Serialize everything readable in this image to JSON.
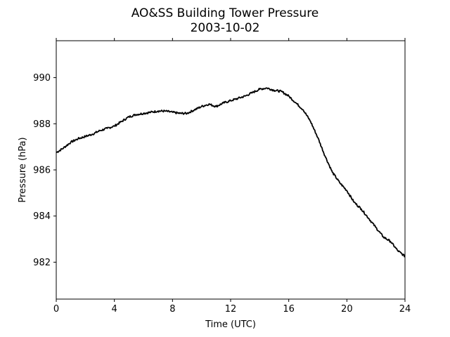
{
  "chart_data": {
    "type": "line",
    "title": "AO&SS Building Tower Pressure",
    "subtitle": "2003-10-02",
    "xlabel": "Time (UTC)",
    "ylabel": "Pressure (hPa)",
    "xlim": [
      0,
      24
    ],
    "ylim": [
      980.4,
      991.6
    ],
    "xticks": [
      "0",
      "4",
      "8",
      "12",
      "16",
      "20",
      "24"
    ],
    "yticks": [
      "982",
      "984",
      "986",
      "988",
      "990"
    ],
    "grid": false,
    "line_color": "#000000",
    "series": [
      {
        "x": [
          0,
          0.5,
          1,
          1.5,
          2,
          2.5,
          3,
          3.5,
          4,
          4.5,
          5,
          5.5,
          6,
          6.5,
          7,
          7.5,
          8,
          8.5,
          9,
          9.5,
          10,
          10.5,
          11,
          11.5,
          12,
          12.5,
          13,
          13.5,
          14,
          14.5,
          15,
          15.5,
          16,
          16.5,
          17,
          17.5,
          18,
          18.5,
          19,
          19.5,
          20,
          20.5,
          21,
          21.5,
          22,
          22.5,
          23,
          23.5,
          24
        ],
        "y": [
          986.75,
          986.95,
          987.2,
          987.35,
          987.45,
          987.55,
          987.7,
          987.8,
          987.9,
          988.1,
          988.3,
          988.4,
          988.45,
          988.5,
          988.55,
          988.55,
          988.5,
          988.45,
          988.45,
          988.6,
          988.75,
          988.85,
          988.75,
          988.9,
          989.0,
          989.1,
          989.2,
          989.35,
          989.5,
          989.55,
          989.45,
          989.4,
          989.2,
          988.9,
          988.6,
          988.1,
          987.4,
          986.6,
          985.9,
          985.45,
          985.1,
          984.6,
          984.3,
          983.9,
          983.5,
          983.1,
          982.9,
          982.5,
          982.25
        ]
      }
    ]
  }
}
